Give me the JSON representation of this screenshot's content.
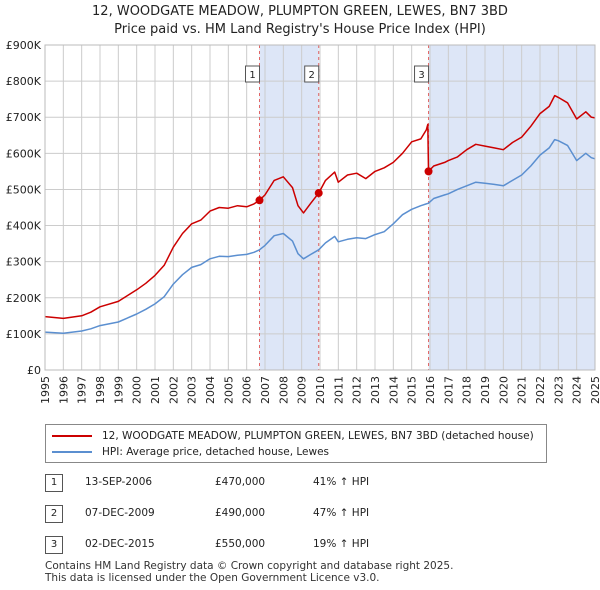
{
  "title_line1": "12, WOODGATE MEADOW, PLUMPTON GREEN, LEWES, BN7 3BD",
  "title_line2": "Price paid vs. HM Land Registry's House Price Index (HPI)",
  "legend": {
    "series1": "12, WOODGATE MEADOW, PLUMPTON GREEN, LEWES, BN7 3BD (detached house)",
    "series2": "HPI: Average price, detached house, Lewes"
  },
  "transactions": [
    {
      "num": "1",
      "date": "13-SEP-2006",
      "price": "£470,000",
      "hpi": "41% ↑ HPI"
    },
    {
      "num": "2",
      "date": "07-DEC-2009",
      "price": "£490,000",
      "hpi": "47% ↑ HPI"
    },
    {
      "num": "3",
      "date": "02-DEC-2015",
      "price": "£550,000",
      "hpi": "19% ↑ HPI"
    }
  ],
  "footer": {
    "line1": "Contains HM Land Registry data © Crown copyright and database right 2025.",
    "line2": "This data is licensed under the Open Government Licence v3.0."
  },
  "colors": {
    "property": "#cc0000",
    "hpi": "#5b8fd0",
    "shade": "#dde6f7",
    "grid": "#cccccc",
    "vline": "#e06666"
  },
  "chart_data": {
    "type": "line",
    "title": "Price paid vs. HM Land Registry's House Price Index (HPI)",
    "xlabel": "",
    "ylabel": "",
    "xlim": [
      1995,
      2025
    ],
    "ylim": [
      0,
      900000
    ],
    "y_ticks": [
      {
        "value": 0,
        "label": "£0"
      },
      {
        "value": 100000,
        "label": "£100K"
      },
      {
        "value": 200000,
        "label": "£200K"
      },
      {
        "value": 300000,
        "label": "£300K"
      },
      {
        "value": 400000,
        "label": "£400K"
      },
      {
        "value": 500000,
        "label": "£500K"
      },
      {
        "value": 600000,
        "label": "£600K"
      },
      {
        "value": 700000,
        "label": "£700K"
      },
      {
        "value": 800000,
        "label": "£800K"
      },
      {
        "value": 900000,
        "label": "£900K"
      }
    ],
    "x_ticks": [
      "1995",
      "1996",
      "1997",
      "1998",
      "1999",
      "2000",
      "2001",
      "2002",
      "2003",
      "2004",
      "2005",
      "2006",
      "2007",
      "2008",
      "2009",
      "2010",
      "2011",
      "2012",
      "2013",
      "2014",
      "2015",
      "2016",
      "2017",
      "2018",
      "2019",
      "2020",
      "2021",
      "2022",
      "2023",
      "2024",
      "2025"
    ],
    "shaded_periods": [
      [
        2006.7,
        2009.93
      ],
      [
        2015.92,
        2025.0
      ]
    ],
    "sales": [
      {
        "label": "1",
        "x": 2006.7,
        "y": 470000
      },
      {
        "label": "2",
        "x": 2009.93,
        "y": 490000
      },
      {
        "label": "3",
        "x": 2015.92,
        "y": 550000
      }
    ],
    "series": [
      {
        "name": "12, WOODGATE MEADOW, PLUMPTON GREEN, LEWES, BN7 3BD (detached house)",
        "points": [
          [
            1995.0,
            148000
          ],
          [
            1996.0,
            143000
          ],
          [
            1997.0,
            150000
          ],
          [
            1997.5,
            160000
          ],
          [
            1998.0,
            175000
          ],
          [
            1999.0,
            190000
          ],
          [
            2000.0,
            222000
          ],
          [
            2000.5,
            240000
          ],
          [
            2001.0,
            262000
          ],
          [
            2001.5,
            290000
          ],
          [
            2002.0,
            340000
          ],
          [
            2002.5,
            378000
          ],
          [
            2003.0,
            405000
          ],
          [
            2003.5,
            415000
          ],
          [
            2004.0,
            440000
          ],
          [
            2004.5,
            450000
          ],
          [
            2005.0,
            448000
          ],
          [
            2005.5,
            455000
          ],
          [
            2006.0,
            452000
          ],
          [
            2006.4,
            460000
          ],
          [
            2006.7,
            470000
          ],
          [
            2007.0,
            485000
          ],
          [
            2007.5,
            525000
          ],
          [
            2008.0,
            535000
          ],
          [
            2008.5,
            505000
          ],
          [
            2008.8,
            455000
          ],
          [
            2009.1,
            435000
          ],
          [
            2009.5,
            462000
          ],
          [
            2009.93,
            490000
          ],
          [
            2010.3,
            525000
          ],
          [
            2010.8,
            548000
          ],
          [
            2011.0,
            520000
          ],
          [
            2011.5,
            540000
          ],
          [
            2012.0,
            545000
          ],
          [
            2012.5,
            530000
          ],
          [
            2013.0,
            550000
          ],
          [
            2013.5,
            560000
          ],
          [
            2014.0,
            575000
          ],
          [
            2014.5,
            600000
          ],
          [
            2015.0,
            632000
          ],
          [
            2015.5,
            640000
          ],
          [
            2015.8,
            665000
          ],
          [
            2015.88,
            680000
          ],
          [
            2015.92,
            550000
          ],
          [
            2016.2,
            565000
          ],
          [
            2016.8,
            575000
          ],
          [
            2017.0,
            580000
          ],
          [
            2017.5,
            590000
          ],
          [
            2018.0,
            610000
          ],
          [
            2018.5,
            625000
          ],
          [
            2019.0,
            620000
          ],
          [
            2019.5,
            615000
          ],
          [
            2020.0,
            610000
          ],
          [
            2020.5,
            630000
          ],
          [
            2021.0,
            645000
          ],
          [
            2021.5,
            675000
          ],
          [
            2022.0,
            710000
          ],
          [
            2022.5,
            730000
          ],
          [
            2022.8,
            760000
          ],
          [
            2023.0,
            755000
          ],
          [
            2023.5,
            740000
          ],
          [
            2024.0,
            695000
          ],
          [
            2024.5,
            715000
          ],
          [
            2024.8,
            700000
          ],
          [
            2025.0,
            698000
          ]
        ]
      },
      {
        "name": "HPI: Average price, detached house, Lewes",
        "points": [
          [
            1995.0,
            105000
          ],
          [
            1996.0,
            102000
          ],
          [
            1997.0,
            108000
          ],
          [
            1997.5,
            114000
          ],
          [
            1998.0,
            123000
          ],
          [
            1999.0,
            133000
          ],
          [
            2000.0,
            155000
          ],
          [
            2000.5,
            168000
          ],
          [
            2001.0,
            183000
          ],
          [
            2001.5,
            203000
          ],
          [
            2002.0,
            238000
          ],
          [
            2002.5,
            264000
          ],
          [
            2003.0,
            284000
          ],
          [
            2003.5,
            292000
          ],
          [
            2004.0,
            308000
          ],
          [
            2004.5,
            315000
          ],
          [
            2005.0,
            314000
          ],
          [
            2005.5,
            318000
          ],
          [
            2006.0,
            320000
          ],
          [
            2006.4,
            326000
          ],
          [
            2006.7,
            333000
          ],
          [
            2007.0,
            345000
          ],
          [
            2007.5,
            372000
          ],
          [
            2008.0,
            378000
          ],
          [
            2008.5,
            357000
          ],
          [
            2008.8,
            322000
          ],
          [
            2009.1,
            308000
          ],
          [
            2009.5,
            320000
          ],
          [
            2009.93,
            333000
          ],
          [
            2010.3,
            352000
          ],
          [
            2010.8,
            370000
          ],
          [
            2011.0,
            355000
          ],
          [
            2011.5,
            362000
          ],
          [
            2012.0,
            366000
          ],
          [
            2012.5,
            364000
          ],
          [
            2013.0,
            375000
          ],
          [
            2013.5,
            383000
          ],
          [
            2014.0,
            405000
          ],
          [
            2014.5,
            430000
          ],
          [
            2015.0,
            445000
          ],
          [
            2015.5,
            455000
          ],
          [
            2015.8,
            460000
          ],
          [
            2015.92,
            462000
          ],
          [
            2016.2,
            475000
          ],
          [
            2016.8,
            485000
          ],
          [
            2017.0,
            488000
          ],
          [
            2017.5,
            500000
          ],
          [
            2018.0,
            510000
          ],
          [
            2018.5,
            520000
          ],
          [
            2019.0,
            517000
          ],
          [
            2019.5,
            514000
          ],
          [
            2020.0,
            510000
          ],
          [
            2020.5,
            525000
          ],
          [
            2021.0,
            540000
          ],
          [
            2021.5,
            565000
          ],
          [
            2022.0,
            595000
          ],
          [
            2022.5,
            615000
          ],
          [
            2022.8,
            638000
          ],
          [
            2023.0,
            635000
          ],
          [
            2023.5,
            622000
          ],
          [
            2024.0,
            580000
          ],
          [
            2024.5,
            600000
          ],
          [
            2024.8,
            588000
          ],
          [
            2025.0,
            585000
          ]
        ]
      }
    ]
  }
}
